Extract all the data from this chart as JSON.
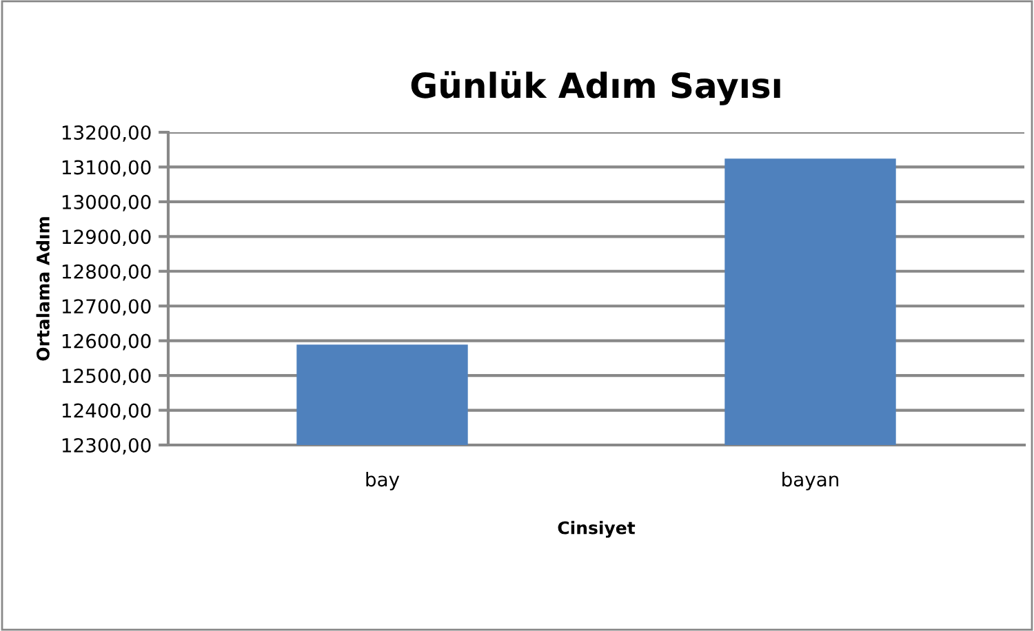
{
  "chart_data": {
    "type": "bar",
    "title": "Günlük Adım Sayısı",
    "xlabel": "Cinsiyet",
    "ylabel": "Ortalama Adım",
    "categories": [
      "bay",
      "bayan"
    ],
    "values": [
      12589,
      13124
    ],
    "color": "#4f81bd",
    "ylim": [
      12300,
      13200
    ],
    "yticks": [
      {
        "value": 12300,
        "label": "12300,00"
      },
      {
        "value": 12400,
        "label": "12400,00"
      },
      {
        "value": 12500,
        "label": "12500,00"
      },
      {
        "value": 12600,
        "label": "12600,00"
      },
      {
        "value": 12700,
        "label": "12700,00"
      },
      {
        "value": 12800,
        "label": "12800,00"
      },
      {
        "value": 12900,
        "label": "12900,00"
      },
      {
        "value": 13000,
        "label": "13000,00"
      },
      {
        "value": 13100,
        "label": "13100,00"
      },
      {
        "value": 13200,
        "label": "13200,00"
      }
    ],
    "grid": "y",
    "legend": false
  }
}
